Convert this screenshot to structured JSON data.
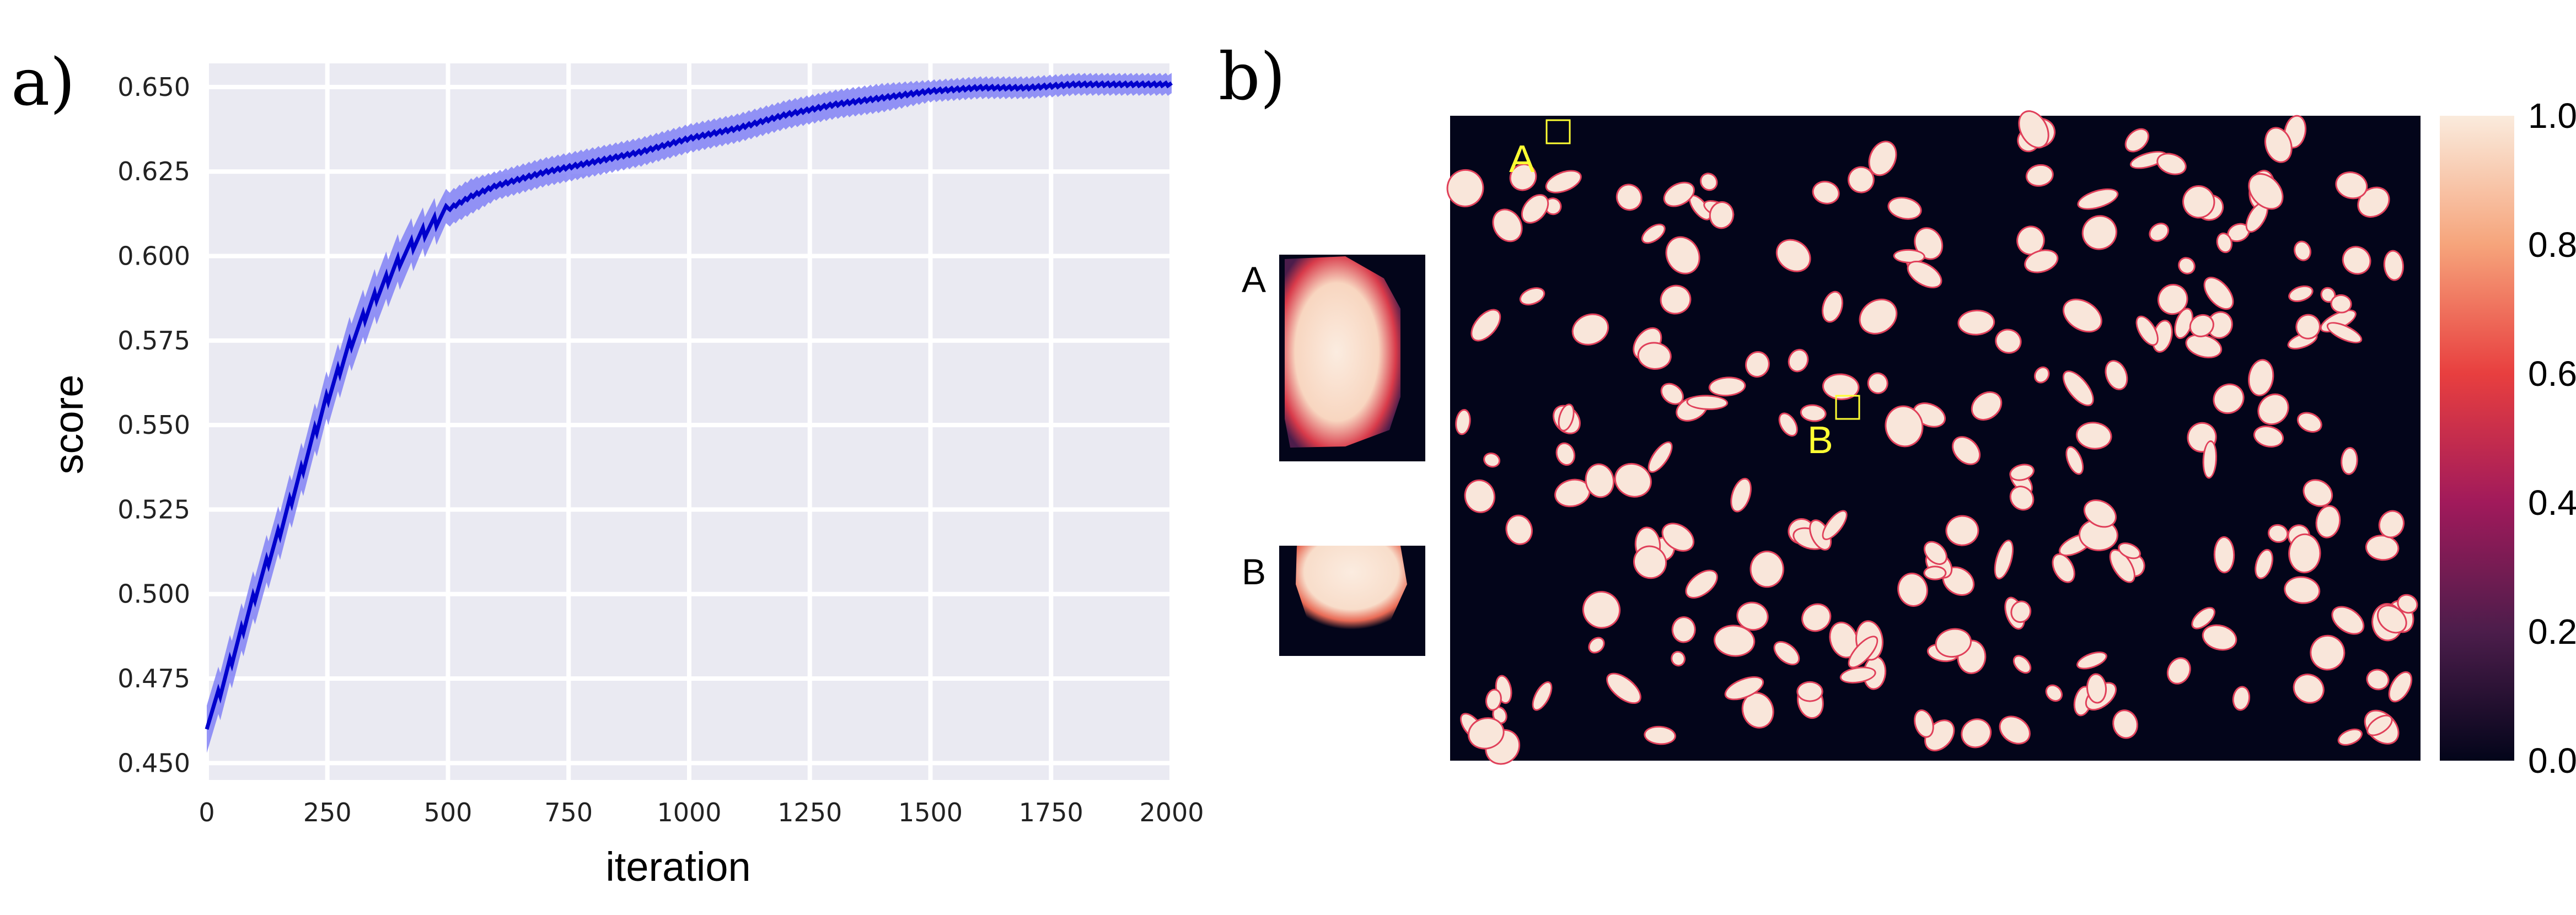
{
  "figure": {
    "panel_a_label": "a)",
    "panel_b_label": "b)"
  },
  "chart_data": [
    {
      "type": "line",
      "xlabel": "iteration",
      "ylabel": "score",
      "xlim": [
        0,
        2000
      ],
      "ylim": [
        0.445,
        0.657
      ],
      "xticks": [
        "0",
        "250",
        "500",
        "750",
        "1000",
        "1250",
        "1500",
        "1750",
        "2000"
      ],
      "yticks": [
        "0.450",
        "0.475",
        "0.500",
        "0.525",
        "0.550",
        "0.575",
        "0.600",
        "0.625",
        "0.650"
      ],
      "grid": true,
      "background": "#eaeaf2",
      "line_color": "#0000cc",
      "band_color": "#7b7bf5",
      "x": [
        0,
        25,
        50,
        75,
        100,
        150,
        200,
        250,
        300,
        350,
        400,
        450,
        500,
        550,
        600,
        700,
        800,
        900,
        1000,
        1100,
        1200,
        1300,
        1400,
        1500,
        1600,
        1700,
        1800,
        1900,
        2000
      ],
      "series": [
        {
          "values": [
            0.462,
            0.47,
            0.48,
            0.49,
            0.5,
            0.518,
            0.538,
            0.558,
            0.575,
            0.588,
            0.599,
            0.607,
            0.614,
            0.618,
            0.621,
            0.625,
            0.628,
            0.631,
            0.635,
            0.638,
            0.642,
            0.645,
            0.647,
            0.649,
            0.65,
            0.65,
            0.651,
            0.651,
            0.651
          ],
          "band_halfwidth": [
            0.007,
            0.007,
            0.007,
            0.007,
            0.007,
            0.007,
            0.007,
            0.007,
            0.007,
            0.007,
            0.007,
            0.006,
            0.005,
            0.005,
            0.004,
            0.004,
            0.004,
            0.004,
            0.004,
            0.004,
            0.004,
            0.004,
            0.004,
            0.003,
            0.003,
            0.003,
            0.003,
            0.003,
            0.003
          ]
        }
      ]
    },
    {
      "type": "heatmap",
      "colorbar_ticks": [
        "0.0",
        "0.2",
        "0.4",
        "0.6",
        "0.8",
        "1.0"
      ],
      "colorbar_range": [
        0.0,
        1.0
      ],
      "colormap": [
        "#03051a",
        "#4c1d4b",
        "#a11a5b",
        "#e83f3f",
        "#f6a47b",
        "#faebdd"
      ],
      "annotations": [
        "A",
        "B"
      ]
    }
  ],
  "insets": {
    "a_label": "A",
    "b_label": "B"
  }
}
